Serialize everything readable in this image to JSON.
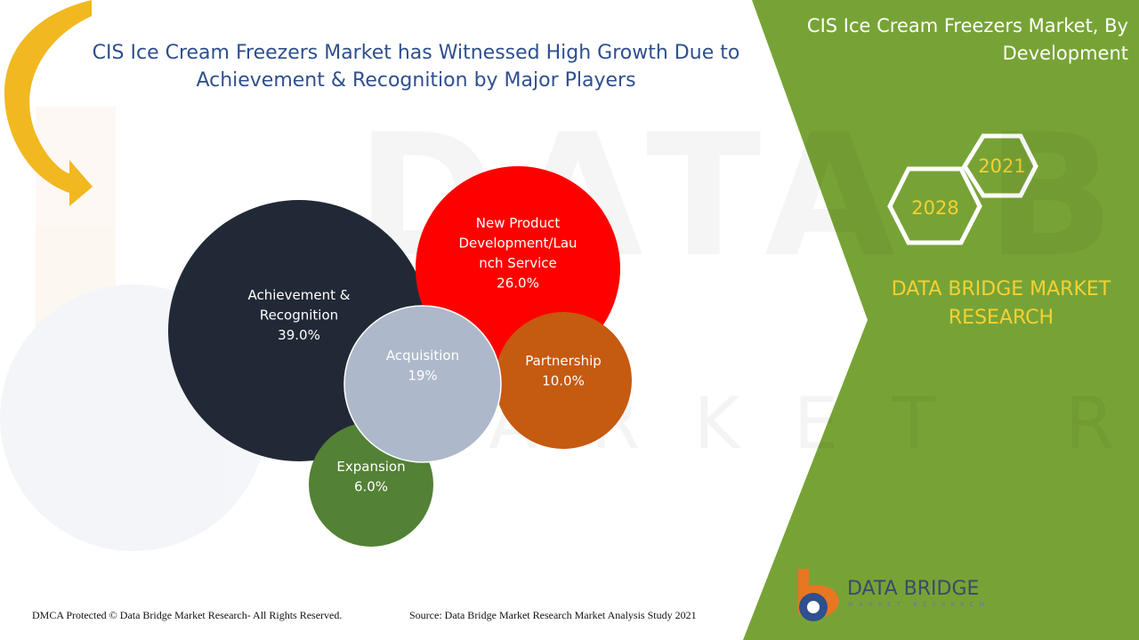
{
  "title": "CIS  Ice Cream Freezers Market has Witnessed High Growth Due to Achievement & Recognition by Major Players",
  "side_panel": {
    "title": "CIS  Ice Cream Freezers Market, By Development",
    "years": [
      "2021",
      "2028"
    ],
    "brand": "DATA BRIDGE MARKET RESEARCH"
  },
  "footer": {
    "copyright": "DMCA Protected © Data Bridge Market Research- All Rights Reserved.",
    "source": "Source: Data Bridge Market Research Market Analysis Study 2021"
  },
  "logo": {
    "name": "DATA BRIDGE",
    "sub": "MARKET RESEARCH"
  },
  "colors": {
    "green_panel": "#77a336",
    "gold_arrow": "#f1b820",
    "brand_yellow": "#f5d132",
    "title_blue": "#2f4f8f"
  },
  "chart_data": {
    "type": "bubble",
    "title": "CIS  Ice Cream Freezers Market, By Development",
    "series": [
      {
        "label": "Achievement & Recognition",
        "value_label": "39.0%",
        "value": 39.0,
        "color": "#222936"
      },
      {
        "label": "New Product Development/Launch Service",
        "value_label": "26.0%",
        "value": 26.0,
        "color": "#ff0000"
      },
      {
        "label": "Partnership",
        "value_label": "10.0%",
        "value": 10.0,
        "color": "#c55a11"
      },
      {
        "label": "Expansion",
        "value_label": "6.0%",
        "value": 6.0,
        "color": "#538135"
      },
      {
        "label": "Acquisition",
        "value_label": "19%",
        "value": 19.0,
        "color": "#adb9ca"
      }
    ]
  }
}
